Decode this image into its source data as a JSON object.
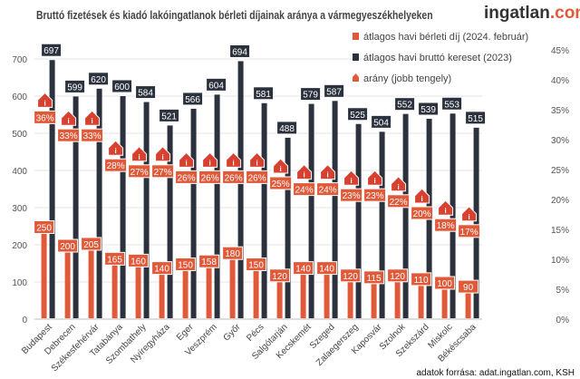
{
  "chart_data": {
    "type": "bar",
    "title": "Bruttó fizetések és kiadó lakóingatlanok bérleti díjainak aránya a vármegyeszékhelyeken",
    "categories": [
      "Budapest",
      "Debrecen",
      "Székesfehérvár",
      "Tatabánya",
      "Szombathely",
      "Nyíregyháza",
      "Eger",
      "Veszprém",
      "Győr",
      "Pécs",
      "Salgótarján",
      "Kecskemét",
      "Szeged",
      "Zalaegerszeg",
      "Kaposvár",
      "Szolnok",
      "Szekszárd",
      "Miskolc",
      "Békéscsaba"
    ],
    "series": [
      {
        "name": "átlagos havi bérleti díj (2024. február)",
        "color": "#e05a3a",
        "values": [
          250,
          200,
          205,
          165,
          160,
          140,
          150,
          158,
          180,
          150,
          120,
          140,
          140,
          120,
          115,
          120,
          110,
          100,
          90
        ]
      },
      {
        "name": "átlagos havi bruttó kereset (2023)",
        "color": "#2b313d",
        "values": [
          697,
          599,
          620,
          600,
          584,
          521,
          566,
          604,
          694,
          581,
          488,
          579,
          587,
          525,
          504,
          552,
          539,
          553,
          515
        ]
      },
      {
        "name": "arány (jobb tengely)",
        "color": "#e05a3a",
        "axis": "right",
        "values": [
          36,
          33,
          33,
          28,
          27,
          27,
          26,
          26,
          26,
          26,
          25,
          24,
          24,
          23,
          23,
          22,
          20,
          18,
          17
        ]
      }
    ],
    "ylim": [
      0,
      700
    ],
    "yticks": [
      0,
      100,
      200,
      300,
      400,
      500,
      600,
      700
    ],
    "y2lim": [
      0,
      45
    ],
    "y2ticks": [
      "0%",
      "5%",
      "10%",
      "15%",
      "20%",
      "25%",
      "30%",
      "35%",
      "40%",
      "45%"
    ],
    "grid": true,
    "legend": "top-right"
  },
  "logo": {
    "main": "ingatlan",
    "suffix": ".com"
  },
  "source": "adatok forrása: adat.ingatlan.com, KSH"
}
